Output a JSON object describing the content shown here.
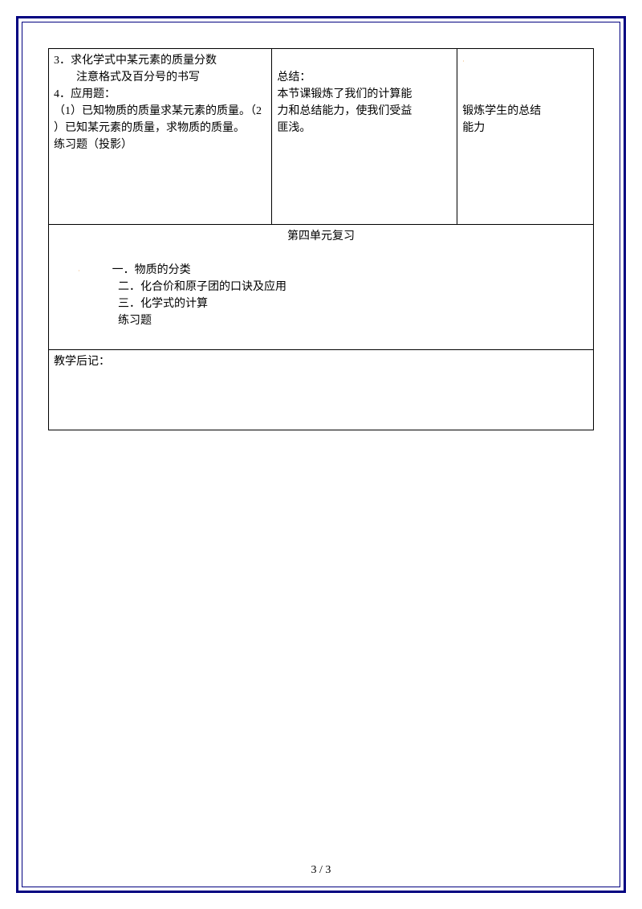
{
  "table": {
    "row1": {
      "col1_line1": "3．求化学式中某元素的质量分数",
      "col1_line2": "　　注意格式及百分号的书写",
      "col1_line3": "4．应用题：",
      "col1_line4": "（1）已知物质的质量求某元素的质量。（2",
      "col1_line5": "）已知某元素的质量，求物质的质量。",
      "col1_line6": "练习题（投影）",
      "col2_line1": "总结：",
      "col2_line2": "本节课锻炼了我们的计算能",
      "col2_line3": "力和总结能力，使我们受益",
      "col2_line4": "匪浅。",
      "col3_line1": "锻炼学生的总结",
      "col3_line2": "能力"
    },
    "row2": {
      "title": "第四单元复习",
      "line1": "一．物质的分类",
      "line2": "二．化合价和原子团的口诀及应用",
      "line3": "三．化学式的计算",
      "line4": "练习题"
    },
    "row3": {
      "label": "教学后记："
    }
  },
  "pageNumber": "3 / 3"
}
